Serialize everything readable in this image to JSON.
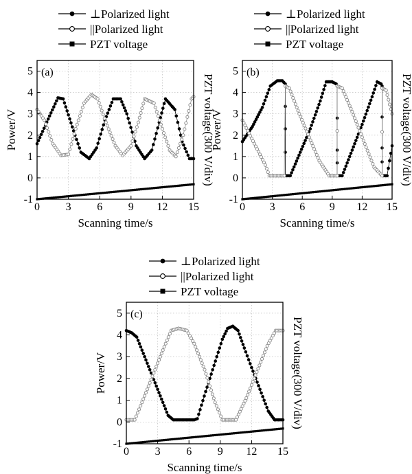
{
  "legend": {
    "perp": "⊥Polarized light",
    "para": "||Polarized light",
    "pzt": "PZT  voltage"
  },
  "colors": {
    "perp": "#000000",
    "para": "#888888",
    "pzt": "#000000"
  },
  "axes": {
    "xlabel": "Scanning time/s",
    "ylabel": "Power/V",
    "y2label": "PZT voltage(300 V/div)"
  },
  "chart_data": [
    {
      "type": "line",
      "panel": "(a)",
      "xlim": [
        0,
        15
      ],
      "ylim": [
        -1,
        5.5
      ],
      "xticks": [
        0,
        3,
        6,
        9,
        12,
        15
      ],
      "yticks": [
        -1,
        0,
        1,
        2,
        3,
        4,
        5
      ],
      "grid": true,
      "series": [
        {
          "name": "⊥Polarized light",
          "marker": "filled-circle",
          "x": [
            0,
            1.2,
            2.0,
            2.5,
            3.5,
            4.2,
            5.0,
            5.7,
            6.5,
            7.3,
            8.0,
            8.6,
            9.5,
            10.3,
            11.0,
            11.7,
            12.3,
            13.2,
            13.9,
            14.6,
            15
          ],
          "y": [
            1.6,
            2.9,
            3.75,
            3.7,
            2.2,
            1.2,
            0.9,
            1.4,
            2.7,
            3.7,
            3.7,
            3.0,
            1.5,
            0.9,
            1.3,
            2.6,
            3.7,
            3.2,
            1.7,
            0.9,
            0.9
          ]
        },
        {
          "name": "||Polarized light",
          "marker": "open-circle",
          "x": [
            0,
            0.7,
            1.5,
            2.3,
            3.0,
            3.7,
            4.5,
            5.2,
            5.8,
            6.6,
            7.5,
            8.2,
            9.0,
            9.7,
            10.3,
            11.2,
            12.0,
            12.7,
            13.3,
            14.0,
            14.8,
            15
          ],
          "y": [
            3.2,
            2.7,
            1.6,
            1.05,
            1.1,
            2.3,
            3.5,
            3.9,
            3.7,
            2.6,
            1.5,
            1.05,
            1.5,
            2.6,
            3.7,
            3.5,
            2.3,
            1.3,
            1.0,
            2.0,
            3.7,
            3.8
          ]
        },
        {
          "name": "PZT  voltage",
          "marker": "filled-square",
          "x": [
            0,
            15
          ],
          "y": [
            -1.0,
            -0.3
          ]
        }
      ]
    },
    {
      "type": "line",
      "panel": "(b)",
      "xlim": [
        0,
        15
      ],
      "ylim": [
        -1,
        5.5
      ],
      "xticks": [
        0,
        3,
        6,
        9,
        12,
        15
      ],
      "yticks": [
        -1,
        0,
        1,
        2,
        3,
        4,
        5
      ],
      "grid": true,
      "series": [
        {
          "name": "⊥Polarized light",
          "marker": "filled-circle",
          "x": [
            0,
            1.0,
            2.0,
            2.8,
            3.5,
            4.0,
            4.3,
            4.3,
            4.3,
            4.8,
            5.8,
            6.8,
            7.8,
            8.4,
            9.0,
            9.4,
            9.5,
            9.5,
            9.5,
            10.0,
            11.0,
            12.0,
            13.0,
            13.5,
            13.9,
            14.0,
            14.0,
            14.0,
            14.5,
            15
          ],
          "y": [
            1.7,
            2.4,
            3.3,
            4.3,
            4.55,
            4.55,
            4.4,
            2.3,
            0.1,
            0.1,
            1.2,
            2.3,
            3.6,
            4.5,
            4.5,
            4.4,
            4.3,
            1.3,
            0.1,
            0.1,
            1.3,
            2.5,
            3.8,
            4.5,
            4.4,
            4.3,
            1.4,
            0.1,
            0.1,
            1.5
          ]
        },
        {
          "name": "||Polarized light",
          "marker": "open-circle",
          "x": [
            0,
            1.2,
            2.3,
            2.7,
            3.8,
            4.2,
            4.3,
            4.7,
            5.7,
            6.7,
            7.7,
            8.7,
            9.5,
            9.5,
            10.0,
            11.0,
            12.0,
            13.2,
            14.0,
            14.0,
            14.4,
            15
          ],
          "y": [
            2.7,
            1.6,
            0.6,
            0.1,
            0.1,
            0.1,
            4.3,
            4.2,
            3.0,
            1.9,
            0.8,
            0.1,
            0.1,
            4.3,
            4.2,
            3.1,
            1.9,
            0.5,
            0.1,
            4.2,
            4.1,
            3.0
          ]
        },
        {
          "name": "PZT  voltage",
          "marker": "filled-square",
          "x": [
            0,
            15
          ],
          "y": [
            -1.0,
            -0.3
          ]
        }
      ]
    },
    {
      "type": "line",
      "panel": "(c)",
      "xlim": [
        0,
        15
      ],
      "ylim": [
        -1,
        5.5
      ],
      "xticks": [
        0,
        3,
        6,
        9,
        12,
        15
      ],
      "yticks": [
        -1,
        0,
        1,
        2,
        3,
        4,
        5
      ],
      "grid": true,
      "series": [
        {
          "name": "⊥Polarized light",
          "marker": "filled-circle",
          "x": [
            0,
            0.5,
            1.0,
            2.0,
            3.0,
            4.0,
            4.5,
            5.5,
            6.5,
            6.8,
            7.6,
            8.4,
            9.2,
            9.7,
            10.2,
            10.7,
            11.3,
            12.0,
            12.8,
            13.6,
            14.2,
            14.3,
            15
          ],
          "y": [
            4.2,
            4.1,
            3.9,
            2.7,
            1.5,
            0.3,
            0.1,
            0.1,
            0.1,
            0.15,
            1.4,
            2.6,
            3.8,
            4.3,
            4.4,
            4.2,
            3.4,
            2.5,
            1.5,
            0.5,
            0.1,
            0.1,
            0.1
          ]
        },
        {
          "name": "||Polarized light",
          "marker": "open-circle",
          "x": [
            0,
            0.8,
            1.5,
            2.5,
            3.5,
            4.3,
            5.0,
            5.8,
            6.5,
            7.5,
            8.5,
            9.2,
            9.5,
            10.5,
            11.5,
            12.5,
            13.5,
            14.3,
            15
          ],
          "y": [
            0.1,
            0.1,
            0.9,
            2.1,
            3.3,
            4.2,
            4.3,
            4.2,
            3.6,
            2.4,
            0.9,
            0.1,
            0.1,
            0.1,
            1.1,
            2.3,
            3.5,
            4.2,
            4.2
          ]
        },
        {
          "name": "PZT  voltage",
          "marker": "filled-square",
          "x": [
            0,
            15
          ],
          "y": [
            -1.0,
            -0.3
          ]
        }
      ]
    }
  ]
}
